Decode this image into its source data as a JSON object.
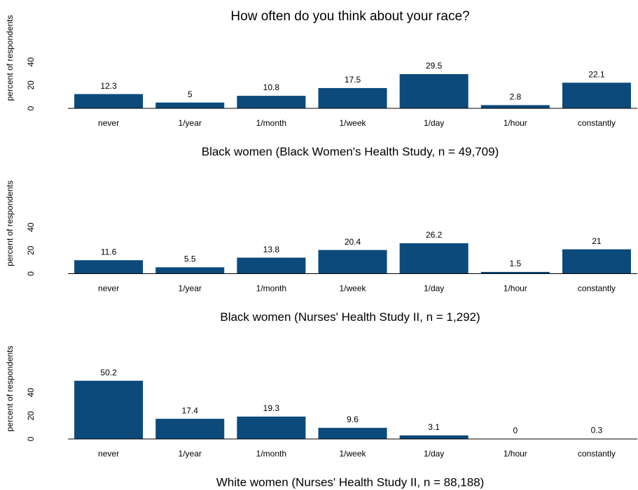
{
  "title": "How often do you think about your race?",
  "chart_data": [
    {
      "type": "bar",
      "subtitle": "Black women  (Black Women's Health Study,  n = 49,709)",
      "ylabel": "percent of respondents",
      "categories": [
        "never",
        "1/year",
        "1/month",
        "1/week",
        "1/day",
        "1/hour",
        "constantly"
      ],
      "values": [
        12.3,
        5,
        10.8,
        17.5,
        29.5,
        2.8,
        22.1
      ],
      "color": "#0b4a7b",
      "ylim": [
        0,
        52
      ],
      "yticks": [
        0,
        20,
        40
      ],
      "grid": false
    },
    {
      "type": "bar",
      "subtitle": "Black women  (Nurses' Health Study II,  n = 1,292)",
      "ylabel": "percent of respondents",
      "categories": [
        "never",
        "1/year",
        "1/month",
        "1/week",
        "1/day",
        "1/hour",
        "constantly"
      ],
      "values": [
        11.6,
        5.5,
        13.8,
        20.4,
        26.2,
        1.5,
        21
      ],
      "color": "#0b4a7b",
      "ylim": [
        0,
        52
      ],
      "yticks": [
        0,
        20,
        40
      ],
      "grid": false
    },
    {
      "type": "bar",
      "subtitle": "White women  (Nurses' Health Study II,  n = 88,188)",
      "ylabel": "percent of respondents",
      "categories": [
        "never",
        "1/year",
        "1/month",
        "1/week",
        "1/day",
        "1/hour",
        "constantly"
      ],
      "values": [
        50.2,
        17.4,
        19.3,
        9.6,
        3.1,
        0,
        0.3
      ],
      "color": "#0b4a7b",
      "ylim": [
        0,
        52
      ],
      "yticks": [
        0,
        20,
        40
      ],
      "grid": false
    }
  ]
}
